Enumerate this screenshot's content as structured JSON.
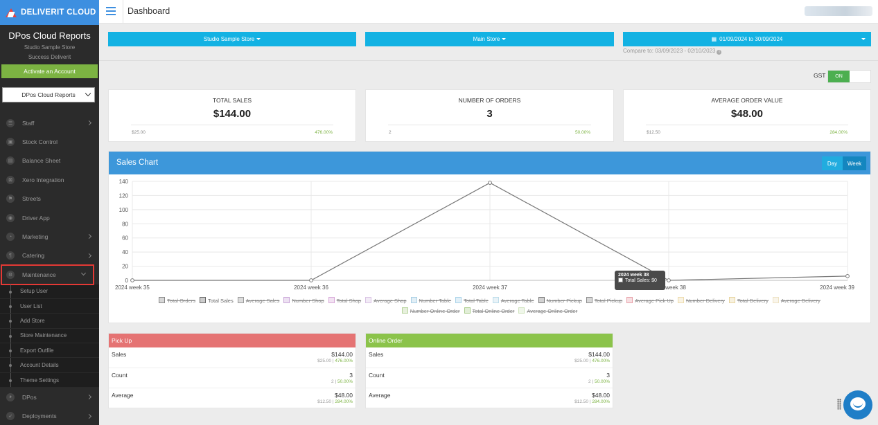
{
  "brand": {
    "name": "DELIVERIT CLOUD"
  },
  "sidebar": {
    "title": "DPos Cloud Reports",
    "store": "Studio Sample Store",
    "subtitle": "Success Deliverit",
    "activate_label": "Activate an Account",
    "report_select": "DPos Cloud Reports",
    "items": [
      {
        "label": "Staff",
        "icon": "users-icon"
      },
      {
        "label": "Stock Control",
        "icon": "box-icon"
      },
      {
        "label": "Balance Sheet",
        "icon": "sheet-icon"
      },
      {
        "label": "Xero Integration",
        "icon": "xero-icon"
      },
      {
        "label": "Streets",
        "icon": "sign-icon"
      },
      {
        "label": "Driver App",
        "icon": "car-icon"
      },
      {
        "label": "Marketing",
        "icon": "bullhorn-icon"
      },
      {
        "label": "Catering",
        "icon": "cutlery-icon"
      },
      {
        "label": "Maintenance",
        "icon": "gears-icon"
      }
    ],
    "subitems": [
      "Setup User",
      "User List",
      "Add Store",
      "Store Maintenance",
      "Export Outfile",
      "Account Details",
      "Theme Settings"
    ],
    "bottom_items": [
      {
        "label": "DPos",
        "icon": "gauge-icon"
      },
      {
        "label": "Deployments",
        "icon": "rocket-icon"
      }
    ]
  },
  "header": {
    "title": "Dashboard"
  },
  "filters": {
    "store_group": "Studio Sample Store",
    "store": "Main Store",
    "date_range": "01/09/2024 to 30/09/2024",
    "compare": "Compare to: 03/09/2023 - 02/10/2023"
  },
  "gst": {
    "label": "GST",
    "state": "ON"
  },
  "kpis": [
    {
      "label": "TOTAL SALES",
      "value": "$144.00",
      "prev": "$25.00",
      "change": "476.00%"
    },
    {
      "label": "NUMBER OF ORDERS",
      "value": "3",
      "prev": "2",
      "change": "50.00%"
    },
    {
      "label": "AVERAGE ORDER VALUE",
      "value": "$48.00",
      "prev": "$12.50",
      "change": "284.00%"
    }
  ],
  "chart": {
    "title": "Sales Chart",
    "day_label": "Day",
    "week_label": "Week",
    "tooltip_title": "2024 week 38",
    "tooltip_body": "Total Sales: $0"
  },
  "chart_data": {
    "type": "line",
    "title": "Sales Chart",
    "categories": [
      "2024 week 35",
      "2024 week 36",
      "2024 week 37",
      "2024 week 38",
      "2024 week 39"
    ],
    "series": [
      {
        "name": "Total Sales",
        "values": [
          0,
          0,
          138,
          0,
          6
        ]
      }
    ],
    "ylim": [
      0,
      140
    ],
    "yticks": [
      0,
      20,
      40,
      60,
      80,
      100,
      120,
      140
    ],
    "grid": true,
    "legend_placement": "bottom"
  },
  "legend": [
    {
      "label": "Total Orders",
      "off": true,
      "color": "#888888"
    },
    {
      "label": "Total Sales",
      "off": false,
      "color": "#666666"
    },
    {
      "label": "Average Sales",
      "off": true,
      "color": "#999999"
    },
    {
      "label": "Number Shop",
      "off": true,
      "color": "#c9a5d8"
    },
    {
      "label": "Total Shop",
      "off": true,
      "color": "#d7a8d8"
    },
    {
      "label": "Average Shop",
      "off": true,
      "color": "#d9c2e3"
    },
    {
      "label": "Number Table",
      "off": true,
      "color": "#a9cfe5"
    },
    {
      "label": "Total Table",
      "off": true,
      "color": "#a8d2e9"
    },
    {
      "label": "Average Table",
      "off": true,
      "color": "#bcdcea"
    },
    {
      "label": "Number Pickup",
      "off": true,
      "color": "#777777"
    },
    {
      "label": "Total Pickup",
      "off": true,
      "color": "#8a8a8a"
    },
    {
      "label": "Average Pick Up",
      "off": true,
      "color": "#e8a0a8"
    },
    {
      "label": "Number Delivery",
      "off": true,
      "color": "#eedcae"
    },
    {
      "label": "Total Delivery",
      "off": true,
      "color": "#e8d4a0"
    },
    {
      "label": "Average Delivery",
      "off": true,
      "color": "#eee2c4"
    },
    {
      "label": "Number Online Order",
      "off": true,
      "color": "#b6d39a"
    },
    {
      "label": "Total Online Order",
      "off": true,
      "color": "#a9cc8a"
    },
    {
      "label": "Average Online Order",
      "off": true,
      "color": "#cfe3bd"
    }
  ],
  "panels": [
    {
      "title": "Pick Up",
      "color": "#e57373",
      "rows": [
        {
          "label": "Sales",
          "value": "$144.00",
          "prev": "$25.00",
          "change": "476.00%"
        },
        {
          "label": "Count",
          "value": "3",
          "prev": "2",
          "change": "50.00%"
        },
        {
          "label": "Average",
          "value": "$48.00",
          "prev": "$12.50",
          "change": "284.00%"
        }
      ]
    },
    {
      "title": "Online Order",
      "color": "#8bc34a",
      "rows": [
        {
          "label": "Sales",
          "value": "$144.00",
          "prev": "$25.00",
          "change": "476.00%"
        },
        {
          "label": "Count",
          "value": "3",
          "prev": "2",
          "change": "50.00%"
        },
        {
          "label": "Average",
          "value": "$48.00",
          "prev": "$12.50",
          "change": "284.00%"
        }
      ]
    }
  ]
}
